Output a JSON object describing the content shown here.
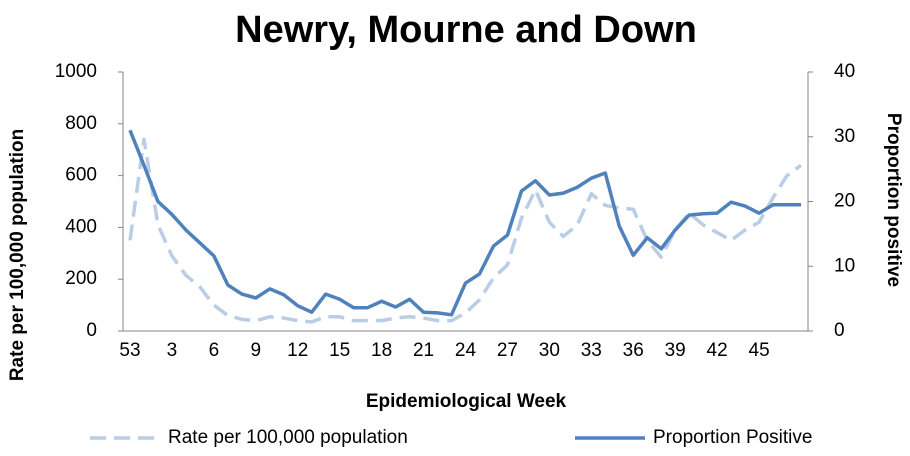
{
  "chart_data": {
    "type": "line",
    "title": "Newry, Mourne and Down",
    "x_label": "Epidemiological Week",
    "y_label": "Rate per 100,000 population",
    "y2_label": "Proportion positive",
    "categories": [
      "53",
      null,
      null,
      "3",
      null,
      null,
      "6",
      null,
      null,
      "9",
      null,
      null,
      "12",
      null,
      null,
      "15",
      null,
      null,
      "18",
      null,
      null,
      "21",
      null,
      null,
      "24",
      null,
      null,
      "27",
      null,
      null,
      "30",
      null,
      null,
      "33",
      null,
      null,
      "36",
      null,
      null,
      "39",
      null,
      null,
      "42",
      null,
      null,
      "45",
      null,
      null,
      null
    ],
    "series": [
      {
        "name": "Rate per 100,000 population",
        "color": "#b9cde5",
        "dashed": true,
        "values": [
          350,
          740,
          410,
          290,
          215,
          170,
          100,
          60,
          45,
          40,
          55,
          50,
          40,
          35,
          55,
          55,
          40,
          40,
          40,
          50,
          55,
          50,
          40,
          40,
          70,
          120,
          205,
          255,
          435,
          545,
          420,
          365,
          410,
          530,
          485,
          475,
          470,
          350,
          285,
          390,
          455,
          410,
          380,
          350,
          390,
          420,
          515,
          600,
          640
        ]
      },
      {
        "name": "Proportion Positive",
        "color": "#4f81bd",
        "dashed": false,
        "axis": "y2",
        "values": [
          31,
          25.6,
          20,
          18,
          15.6,
          13.6,
          11.6,
          7.1,
          5.7,
          5.1,
          6.5,
          5.6,
          3.9,
          2.9,
          5.7,
          4.9,
          3.6,
          3.6,
          4.6,
          3.7,
          4.9,
          2.9,
          2.8,
          2.5,
          7.4,
          8.8,
          13.1,
          14.8,
          21.6,
          23.2,
          21,
          21.3,
          22.2,
          23.6,
          24.4,
          16.2,
          11.7,
          14.4,
          12.7,
          15.6,
          17.9,
          18.1,
          18.2,
          19.9,
          19.3,
          18.2,
          19.5,
          19.5,
          19.5
        ]
      }
    ],
    "ylim": [
      0,
      1000
    ],
    "yticks": [
      0,
      200,
      400,
      600,
      800,
      1000
    ],
    "y2lim": [
      0,
      40
    ],
    "y2ticks": [
      0,
      10,
      20,
      30,
      40
    ],
    "legend": "bottom"
  }
}
